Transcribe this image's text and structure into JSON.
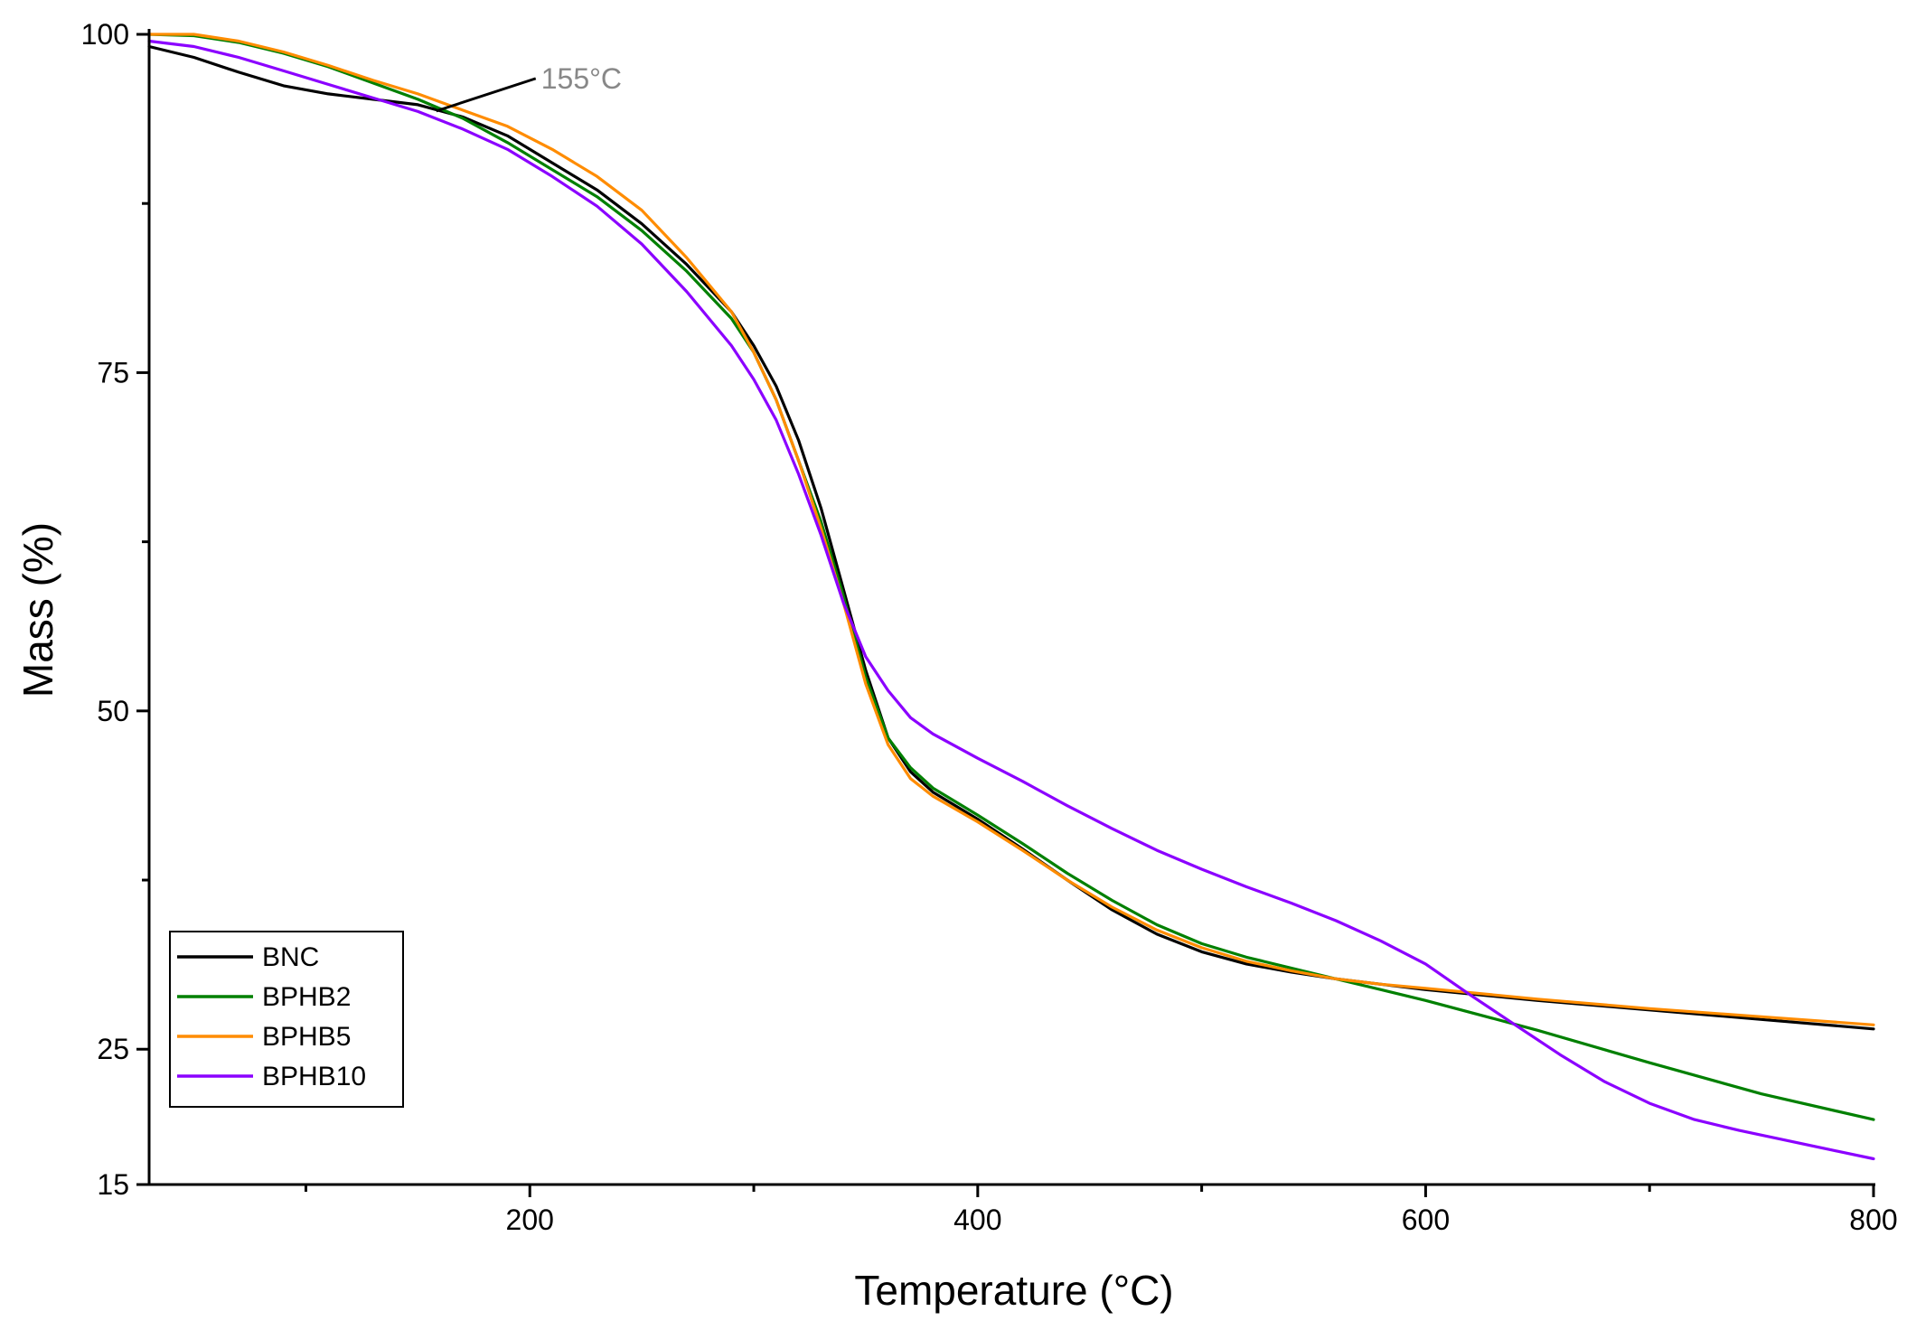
{
  "chart_data": {
    "type": "line",
    "xlabel": "Temperature (°C)",
    "ylabel": "Mass (%)",
    "xlim": [
      30,
      800
    ],
    "ylim": [
      15,
      100
    ],
    "x_ticks": [
      200,
      400,
      600,
      800
    ],
    "x_minor_ticks": [
      100,
      300,
      500,
      700
    ],
    "y_ticks": [
      15,
      25,
      50,
      75,
      100
    ],
    "y_minor_ticks": [
      37.5,
      62.5,
      87.5
    ],
    "legend_position": "bottom-left",
    "grid": false,
    "annotation": {
      "text": "155°C",
      "x": 155,
      "y": 94.2,
      "color": "#888888"
    },
    "series": [
      {
        "name": "BNC",
        "color": "#000000",
        "x": [
          30,
          50,
          70,
          90,
          110,
          130,
          150,
          170,
          190,
          210,
          230,
          250,
          270,
          290,
          300,
          310,
          320,
          330,
          340,
          350,
          360,
          370,
          380,
          400,
          420,
          440,
          460,
          480,
          500,
          520,
          540,
          560,
          580,
          600,
          650,
          700,
          750,
          800
        ],
        "y": [
          99.1,
          98.3,
          97.2,
          96.2,
          95.6,
          95.2,
          94.8,
          93.9,
          92.5,
          90.5,
          88.5,
          86.0,
          83.0,
          79.5,
          77.0,
          74.0,
          70.0,
          65.0,
          59.0,
          53.0,
          48.0,
          45.5,
          44.0,
          42.0,
          39.8,
          37.5,
          35.3,
          33.5,
          32.2,
          31.3,
          30.7,
          30.2,
          29.8,
          29.4,
          28.6,
          27.9,
          27.2,
          26.5
        ]
      },
      {
        "name": "BPHB2",
        "color": "#008000",
        "x": [
          30,
          50,
          70,
          90,
          110,
          130,
          150,
          170,
          190,
          210,
          230,
          250,
          270,
          290,
          300,
          310,
          320,
          330,
          340,
          350,
          360,
          370,
          380,
          400,
          420,
          440,
          460,
          480,
          500,
          520,
          540,
          560,
          580,
          600,
          650,
          700,
          750,
          800
        ],
        "y": [
          100.0,
          99.9,
          99.4,
          98.6,
          97.6,
          96.4,
          95.2,
          93.8,
          92.0,
          90.0,
          88.0,
          85.5,
          82.5,
          79.0,
          76.5,
          73.0,
          68.5,
          64.0,
          58.5,
          52.5,
          48.0,
          45.8,
          44.3,
          42.3,
          40.2,
          38.0,
          36.0,
          34.2,
          32.8,
          31.8,
          31.0,
          30.2,
          29.4,
          28.6,
          26.4,
          24.0,
          21.7,
          19.8
        ]
      },
      {
        "name": "BPHB5",
        "color": "#FF8C00",
        "x": [
          30,
          50,
          70,
          90,
          110,
          130,
          150,
          170,
          190,
          210,
          230,
          250,
          270,
          290,
          300,
          310,
          320,
          330,
          340,
          350,
          360,
          370,
          380,
          400,
          420,
          440,
          460,
          480,
          500,
          520,
          540,
          560,
          580,
          600,
          650,
          700,
          750,
          800
        ],
        "y": [
          100.0,
          100.0,
          99.5,
          98.7,
          97.7,
          96.6,
          95.6,
          94.4,
          93.2,
          91.5,
          89.5,
          87.0,
          83.5,
          79.5,
          76.5,
          73.0,
          68.5,
          63.5,
          58.0,
          52.0,
          47.5,
          45.0,
          43.7,
          41.8,
          39.7,
          37.5,
          35.5,
          33.8,
          32.5,
          31.5,
          30.8,
          30.2,
          29.8,
          29.5,
          28.7,
          28.0,
          27.4,
          26.8
        ]
      },
      {
        "name": "BPHB10",
        "color": "#8B00FF",
        "x": [
          30,
          50,
          70,
          90,
          110,
          130,
          150,
          170,
          190,
          210,
          230,
          250,
          270,
          290,
          300,
          310,
          320,
          330,
          340,
          350,
          360,
          370,
          380,
          400,
          420,
          440,
          460,
          480,
          500,
          520,
          540,
          560,
          580,
          600,
          620,
          640,
          660,
          680,
          700,
          720,
          740,
          760,
          780,
          800
        ],
        "y": [
          99.5,
          99.1,
          98.3,
          97.3,
          96.3,
          95.3,
          94.3,
          93.0,
          91.5,
          89.5,
          87.3,
          84.5,
          81.0,
          77.0,
          74.5,
          71.5,
          67.5,
          63.0,
          58.0,
          54.0,
          51.5,
          49.5,
          48.3,
          46.5,
          44.8,
          43.0,
          41.3,
          39.7,
          38.3,
          37.0,
          35.8,
          34.5,
          33.0,
          31.3,
          29.0,
          26.8,
          24.6,
          22.6,
          21.0,
          19.8,
          19.0,
          18.3,
          17.6,
          16.9
        ]
      }
    ]
  }
}
